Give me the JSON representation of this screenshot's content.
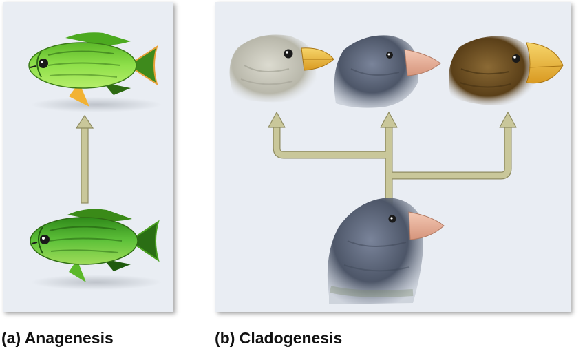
{
  "panels": {
    "a": {
      "caption": "(a) Anagenesis",
      "ancestor_icon": "fish-icon",
      "descendant_icon": "fish-icon",
      "arrow_icon": "arrow-up-icon"
    },
    "b": {
      "caption": "(b) Cladogenesis",
      "ancestor_icon": "finch-head-icon",
      "descendant_icons": [
        "finch-head-icon",
        "finch-head-icon",
        "finch-head-icon"
      ],
      "arrow_icon": "branching-arrow-icon"
    }
  },
  "colors": {
    "panel_background": "#e9edf3",
    "arrow_fill": "#c9c79a",
    "arrow_outline": "#8f8c62",
    "fish_green": "#7fd63a",
    "fish_dark": "#2f6b15",
    "fish_fin_orange": "#f2b233",
    "finch_gray": "#c9c8bd",
    "finch_slate": "#5b6478",
    "finch_brown": "#6b4d22",
    "beak_yellow": "#f0c24a",
    "beak_pink": "#e9b5a1"
  }
}
